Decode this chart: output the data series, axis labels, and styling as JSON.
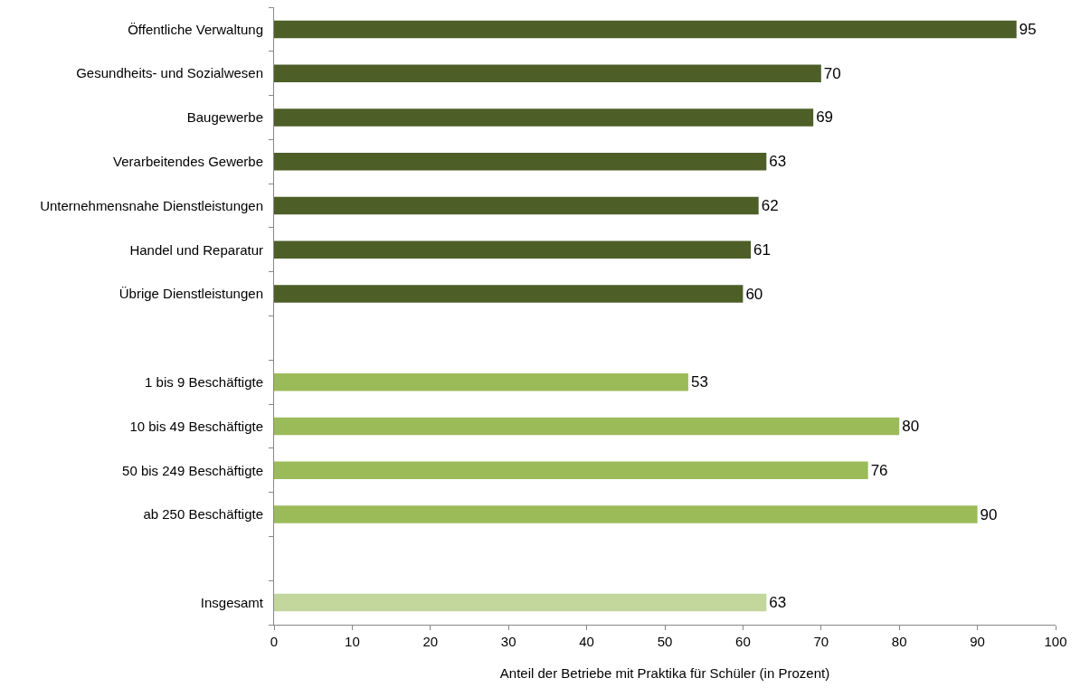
{
  "chart_data": {
    "type": "bar",
    "orientation": "horizontal",
    "xlabel": "Anteil der Betriebe mit Praktika für Schüler (in Prozent)",
    "categories": [
      "Öffentliche Verwaltung",
      "Gesundheits- und Sozialwesen",
      "Baugewerbe",
      "Verarbeitendes Gewerbe",
      "Unternehmensnahe Dienstleistungen",
      "Handel und Reparatur",
      "Übrige Dienstleistungen",
      null,
      "1 bis 9 Beschäftigte",
      "10 bis 49 Beschäftigte",
      "50 bis 249 Beschäftigte",
      "ab 250 Beschäftigte",
      null,
      "Insgesamt"
    ],
    "values": [
      95,
      70,
      69,
      63,
      62,
      61,
      60,
      null,
      53,
      80,
      76,
      90,
      null,
      63
    ],
    "colors": [
      "#4d5f27",
      "#4d5f27",
      "#4d5f27",
      "#4d5f27",
      "#4d5f27",
      "#4d5f27",
      "#4d5f27",
      "#4d5f27",
      "#9bbb59",
      "#9bbb59",
      "#9bbb59",
      "#9bbb59",
      "#9bbb59",
      "#c3d69b"
    ],
    "xlim": [
      0,
      100
    ],
    "xticks": [
      0,
      10,
      20,
      30,
      40,
      50,
      60,
      70,
      80,
      90,
      100
    ],
    "data_labels": true,
    "grid": false
  }
}
